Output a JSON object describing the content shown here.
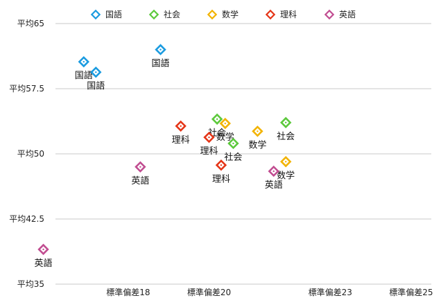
{
  "chart_data": {
    "type": "scatter",
    "title": "",
    "xlabel": "",
    "ylabel": "",
    "ylim": [
      35,
      65
    ],
    "y_ticks": [
      {
        "value": 65,
        "label": "平均65"
      },
      {
        "value": 57.5,
        "label": "平均57.5"
      },
      {
        "value": 50,
        "label": "平均50"
      },
      {
        "value": 42.5,
        "label": "平均42.5"
      },
      {
        "value": 35,
        "label": "平均35"
      }
    ],
    "x_ticks": [
      {
        "value": 18,
        "label": "標準偏差18"
      },
      {
        "value": 20,
        "label": "標準偏差20"
      },
      {
        "value": 23,
        "label": "標準偏差23"
      },
      {
        "value": 25,
        "label": "標準偏差25"
      }
    ],
    "xlim": [
      16.2,
      25.5
    ],
    "grid": true,
    "legend_position": "top",
    "series": [
      {
        "name": "国語",
        "color": "#1a9be0",
        "points": [
          [
            16.9,
            60.6
          ],
          [
            17.2,
            59.4
          ],
          [
            18.8,
            62.0
          ]
        ]
      },
      {
        "name": "社会",
        "color": "#5cc93c",
        "points": [
          [
            20.2,
            54.0
          ],
          [
            20.6,
            51.2
          ],
          [
            21.9,
            53.6
          ]
        ]
      },
      {
        "name": "数学",
        "color": "#f2b300",
        "points": [
          [
            20.4,
            53.5
          ],
          [
            21.2,
            52.6
          ],
          [
            21.9,
            49.1
          ]
        ]
      },
      {
        "name": "理科",
        "color": "#e53517",
        "points": [
          [
            19.3,
            53.2
          ],
          [
            20.0,
            51.9
          ],
          [
            20.3,
            48.7
          ]
        ]
      },
      {
        "name": "英語",
        "color": "#c14d91",
        "points": [
          [
            18.3,
            48.5
          ],
          [
            15.9,
            39.0
          ],
          [
            21.6,
            48.0
          ]
        ]
      }
    ]
  }
}
